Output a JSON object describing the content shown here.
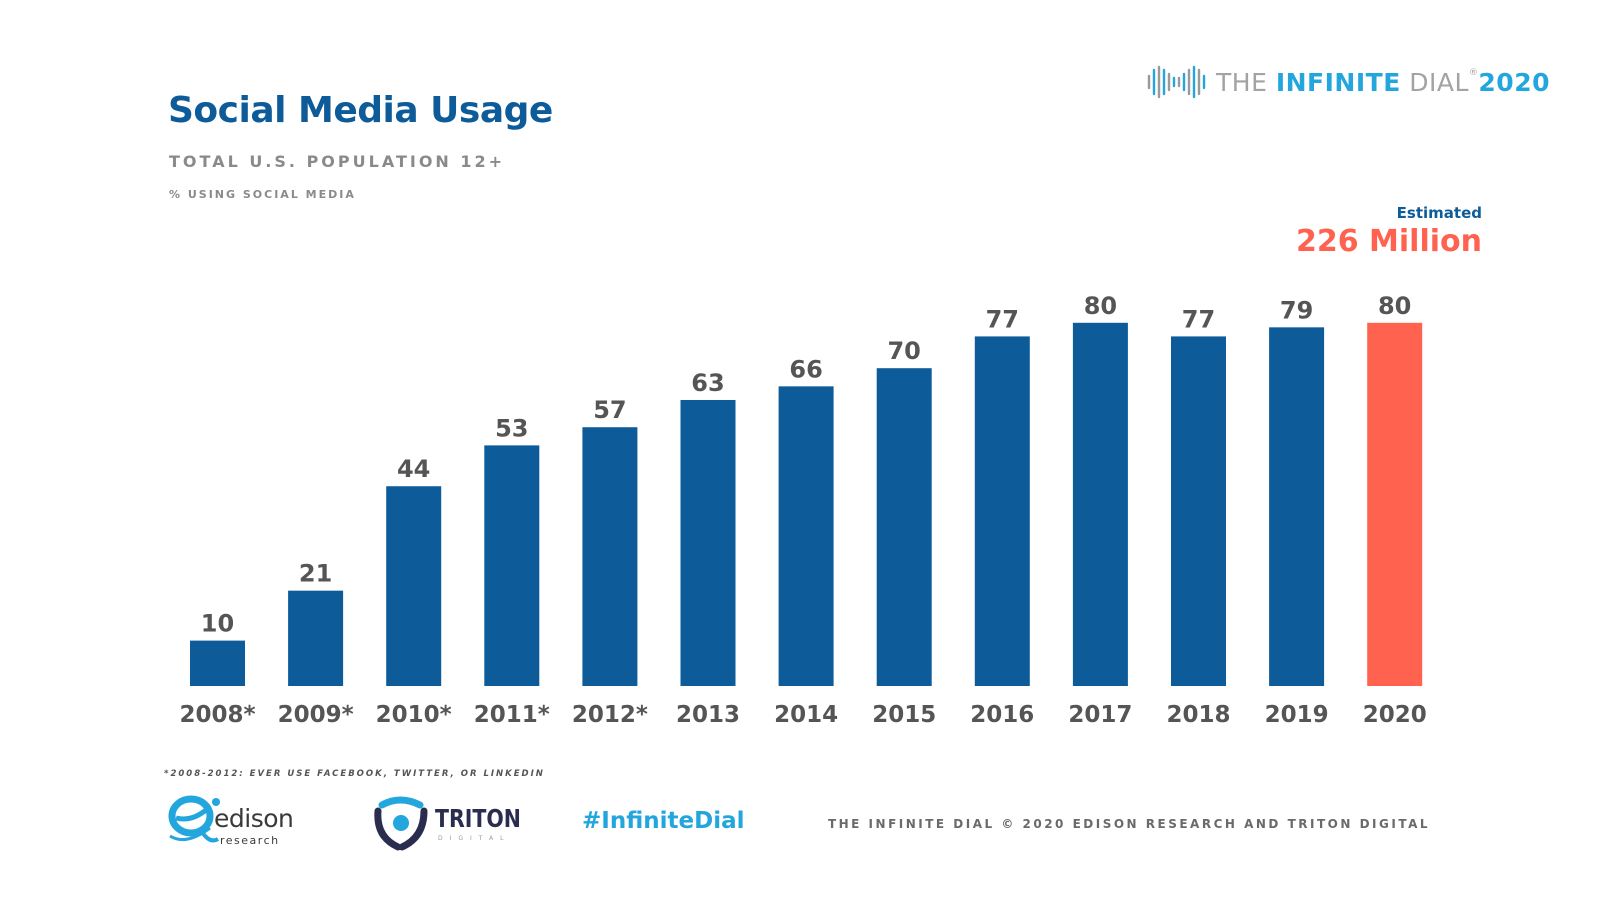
{
  "header": {
    "title": "Social Media Usage",
    "subtitle": "TOTAL U.S. POPULATION 12+",
    "metric": "% USING SOCIAL MEDIA"
  },
  "brand": {
    "prefix": "THE",
    "bold": "INFINITE",
    "dial": "DIAL",
    "year": "2020",
    "trademark": "®"
  },
  "estimate": {
    "label": "Estimated",
    "value": "226 Million"
  },
  "colors": {
    "bar": "#0d5c99",
    "highlight": "#ff6350",
    "label": "#555555"
  },
  "chart_data": {
    "type": "bar",
    "title": "Social Media Usage",
    "subtitle": "TOTAL U.S. POPULATION 12+",
    "ylabel": "% USING SOCIAL MEDIA",
    "categories": [
      "2008*",
      "2009*",
      "2010*",
      "2011*",
      "2012*",
      "2013",
      "2014",
      "2015",
      "2016",
      "2017",
      "2018",
      "2019",
      "2020"
    ],
    "values": [
      10,
      21,
      44,
      53,
      57,
      63,
      66,
      70,
      77,
      80,
      77,
      79,
      80
    ],
    "highlight_category": "2020",
    "ylim": [
      0,
      100
    ],
    "grid": false,
    "data_labels": true
  },
  "footer": {
    "footnote": "*2008-2012: EVER USE FACEBOOK, TWITTER, OR LINKEDIN",
    "edison": "edison",
    "edison_sub": "research",
    "triton": "TRITON",
    "triton_sub": "DIGITAL",
    "hashtag": "#InfiniteDial",
    "copyright": "THE INFINITE DIAL   © 2020 EDISON RESEARCH AND TRITON DIGITAL"
  }
}
